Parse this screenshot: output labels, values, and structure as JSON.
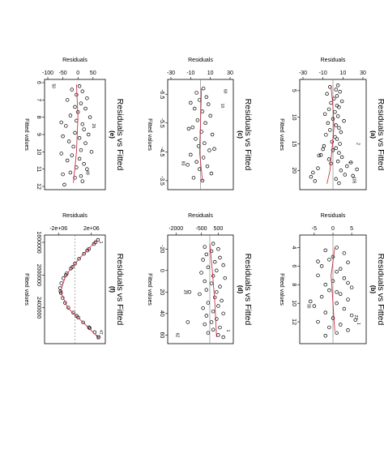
{
  "chart_data": [
    {
      "type": "scatter",
      "letter": "(a)",
      "title": "Residuals vs Fitted",
      "xlabel": "Fitted values",
      "ylabel": "Residuals",
      "xlim": [
        3.5,
        23
      ],
      "ylim": [
        -30,
        30
      ],
      "fitted_ticks": [
        5,
        10,
        15,
        20
      ],
      "residual_ticks": [
        -30,
        -10,
        10,
        30
      ],
      "zero_line": true,
      "points": [
        [
          4,
          5
        ],
        [
          4.3,
          -3
        ],
        [
          4.8,
          3
        ],
        [
          5.2,
          7
        ],
        [
          5.6,
          -6
        ],
        [
          6,
          4
        ],
        [
          6.5,
          1
        ],
        [
          7,
          9
        ],
        [
          7.3,
          -2
        ],
        [
          7.8,
          4
        ],
        [
          8.1,
          6
        ],
        [
          8.5,
          -4
        ],
        [
          9,
          2
        ],
        [
          9.4,
          -8
        ],
        [
          9.8,
          5
        ],
        [
          10.3,
          0
        ],
        [
          10.7,
          11
        ],
        [
          11.1,
          -5
        ],
        [
          11.5,
          3
        ],
        [
          12,
          6
        ],
        [
          12.4,
          -3
        ],
        [
          12.8,
          8
        ],
        [
          13.3,
          -7
        ],
        [
          13.7,
          2
        ],
        [
          14.1,
          4
        ],
        [
          14.6,
          -1
        ],
        [
          15,
          7
        ],
        [
          15.4,
          -9
        ],
        [
          15.8,
          3
        ],
        [
          16.2,
          0
        ],
        [
          16.7,
          6
        ],
        [
          17.1,
          -12
        ],
        [
          17.5,
          9
        ],
        [
          17.9,
          -4
        ],
        [
          18.3,
          5
        ],
        [
          18.7,
          -2
        ],
        [
          19.2,
          14
        ],
        [
          19.6,
          -15
        ],
        [
          20,
          8
        ],
        [
          20.4,
          -20
        ],
        [
          20.8,
          12
        ],
        [
          21.2,
          -22
        ],
        [
          21.6,
          3
        ],
        [
          22,
          -18
        ],
        [
          22.4,
          6
        ],
        [
          21,
          20
        ],
        [
          19.8,
          24
        ],
        [
          18.5,
          18
        ],
        [
          17.2,
          -14
        ],
        [
          16,
          -10
        ]
      ],
      "smoother": [
        [
          4,
          -2
        ],
        [
          8,
          0
        ],
        [
          12,
          1
        ],
        [
          16,
          -1
        ],
        [
          20,
          -3
        ],
        [
          22.5,
          -6
        ]
      ],
      "labels": [
        {
          "text": "1",
          "x": 18.5,
          "y": 16
        },
        {
          "text": "105",
          "x": 21.8,
          "y": 20
        },
        {
          "text": "2",
          "x": 15,
          "y": 24
        }
      ]
    },
    {
      "type": "scatter",
      "letter": "(b)",
      "title": "Residuals vs Fitted",
      "xlabel": "Fitted values",
      "ylabel": "Residuals",
      "xlim": [
        3,
        14
      ],
      "ylim": [
        -8,
        8
      ],
      "fitted_ticks": [
        4,
        6,
        8,
        10,
        12
      ],
      "residual_ticks": [
        -5,
        0,
        5
      ],
      "zero_line": true,
      "points": [
        [
          4,
          1
        ],
        [
          4.3,
          -2
        ],
        [
          4.6,
          3
        ],
        [
          5,
          0
        ],
        [
          5.3,
          -1
        ],
        [
          5.6,
          4
        ],
        [
          6,
          -3
        ],
        [
          6.3,
          2
        ],
        [
          6.6,
          1
        ],
        [
          7,
          -4
        ],
        [
          7.3,
          3
        ],
        [
          7.6,
          0
        ],
        [
          8,
          -2
        ],
        [
          8.3,
          5
        ],
        [
          8.6,
          -1
        ],
        [
          9,
          2
        ],
        [
          9.3,
          -3
        ],
        [
          9.6,
          4
        ],
        [
          10,
          1
        ],
        [
          10.3,
          -5
        ],
        [
          10.6,
          3
        ],
        [
          11,
          -2
        ],
        [
          11.3,
          5
        ],
        [
          11.6,
          0
        ],
        [
          12,
          -4
        ],
        [
          12.3,
          2
        ],
        [
          12.6,
          -1
        ],
        [
          12.9,
          4
        ],
        [
          13.2,
          1
        ],
        [
          13.5,
          -2
        ],
        [
          5.5,
          -4
        ],
        [
          7.8,
          4
        ],
        [
          9.8,
          -6
        ],
        [
          11.8,
          6
        ],
        [
          8.8,
          1
        ]
      ],
      "smoother": [
        [
          4,
          0.5
        ],
        [
          7,
          -0.5
        ],
        [
          10,
          0
        ],
        [
          13,
          0.5
        ]
      ],
      "labels": [
        {
          "text": "1",
          "x": 12.2,
          "y": 6.5
        },
        {
          "text": "30",
          "x": 10.3,
          "y": -6.8
        },
        {
          "text": "27",
          "x": 11.5,
          "y": 5.8
        }
      ]
    },
    {
      "type": "scatter",
      "letter": "(c)",
      "title": "Residuals vs Fitted",
      "xlabel": "Fitted values",
      "ylabel": "Residuals",
      "xlim": [
        -6.9,
        -3.3
      ],
      "ylim": [
        -30,
        30
      ],
      "fitted_ticks": [
        -6.5,
        -5.5,
        -4.5,
        -3.5
      ],
      "residual_ticks": [
        -30,
        -10,
        10,
        30
      ],
      "zero_line": true,
      "points": [
        [
          -6.7,
          3
        ],
        [
          -6.55,
          -4
        ],
        [
          -6.4,
          6
        ],
        [
          -6.3,
          -1
        ],
        [
          -6.15,
          8
        ],
        [
          -6,
          -6
        ],
        [
          -5.9,
          2
        ],
        [
          -5.75,
          10
        ],
        [
          -5.6,
          -3
        ],
        [
          -5.5,
          5
        ],
        [
          -5.35,
          -8
        ],
        [
          -5.2,
          1
        ],
        [
          -5.1,
          12
        ],
        [
          -4.95,
          -5
        ],
        [
          -4.8,
          4
        ],
        [
          -4.7,
          -2
        ],
        [
          -4.55,
          9
        ],
        [
          -4.4,
          -10
        ],
        [
          -4.3,
          3
        ],
        [
          -4.15,
          -4
        ],
        [
          -4,
          7
        ],
        [
          -3.9,
          -1
        ],
        [
          -3.75,
          11
        ],
        [
          -3.6,
          -7
        ],
        [
          -3.5,
          2
        ],
        [
          -6.2,
          -10
        ],
        [
          -5.3,
          -12
        ],
        [
          -4.6,
          14
        ],
        [
          -4.05,
          -13
        ]
      ],
      "smoother": [
        [
          -6.7,
          1
        ],
        [
          -5.5,
          0
        ],
        [
          -4.5,
          -1
        ],
        [
          -3.5,
          2
        ]
      ],
      "labels": [
        {
          "text": "10",
          "x": -6.1,
          "y": 21
        },
        {
          "text": "83",
          "x": -4.1,
          "y": -19
        },
        {
          "text": "60",
          "x": -6.6,
          "y": 24
        }
      ]
    },
    {
      "type": "scatter",
      "letter": "(d)",
      "title": "Residuals vs Fitted",
      "xlabel": "Fitted values",
      "ylabel": "Residuals",
      "xlim": [
        -30,
        65
      ],
      "ylim": [
        -2300,
        1200
      ],
      "fitted_ticks": [
        -20,
        0,
        20,
        40,
        60
      ],
      "residual_ticks": [
        -2000,
        -500,
        500
      ],
      "zero_line": true,
      "points": [
        [
          -25,
          200
        ],
        [
          -22,
          -300
        ],
        [
          -20,
          500
        ],
        [
          -18,
          100
        ],
        [
          -15,
          -200
        ],
        [
          -12,
          600
        ],
        [
          -10,
          -400
        ],
        [
          -8,
          300
        ],
        [
          -5,
          800
        ],
        [
          -3,
          -100
        ],
        [
          0,
          400
        ],
        [
          2,
          -500
        ],
        [
          5,
          200
        ],
        [
          7,
          900
        ],
        [
          10,
          -300
        ],
        [
          12,
          100
        ],
        [
          15,
          600
        ],
        [
          18,
          -200
        ],
        [
          20,
          400
        ],
        [
          22,
          -600
        ],
        [
          25,
          300
        ],
        [
          28,
          700
        ],
        [
          30,
          -100
        ],
        [
          33,
          500
        ],
        [
          35,
          -400
        ],
        [
          38,
          200
        ],
        [
          40,
          800
        ],
        [
          42,
          -200
        ],
        [
          45,
          400
        ],
        [
          48,
          100
        ],
        [
          50,
          -300
        ],
        [
          53,
          600
        ],
        [
          55,
          200
        ],
        [
          58,
          -100
        ],
        [
          60,
          500
        ],
        [
          62,
          800
        ],
        [
          20,
          -1200
        ],
        [
          48,
          -1300
        ]
      ],
      "smoother": [
        [
          -25,
          0
        ],
        [
          0,
          150
        ],
        [
          30,
          300
        ],
        [
          62,
          400
        ]
      ],
      "labels": [
        {
          "text": "28",
          "x": 20,
          "y": -1500
        },
        {
          "text": "1",
          "x": 56,
          "y": 1000
        },
        {
          "text": "62",
          "x": 60,
          "y": -2000
        }
      ]
    },
    {
      "type": "scatter",
      "letter": "(e)",
      "title": "Residuals vs Fitted",
      "xlabel": "Fitted values",
      "ylabel": "Residuals",
      "xlim": [
        6,
        12
      ],
      "ylim": [
        -100,
        80
      ],
      "fitted_ticks": [
        6,
        7,
        8,
        9,
        10,
        11,
        12
      ],
      "residual_ticks": [
        -100,
        -50,
        0,
        50
      ],
      "zero_line": false,
      "points": [
        [
          6.2,
          5
        ],
        [
          6.4,
          -20
        ],
        [
          6.5,
          15
        ],
        [
          6.7,
          -5
        ],
        [
          6.9,
          30
        ],
        [
          7,
          -35
        ],
        [
          7.2,
          10
        ],
        [
          7.4,
          -10
        ],
        [
          7.5,
          25
        ],
        [
          7.7,
          0
        ],
        [
          7.9,
          -25
        ],
        [
          8,
          40
        ],
        [
          8.2,
          -5
        ],
        [
          8.4,
          15
        ],
        [
          8.5,
          -40
        ],
        [
          8.7,
          20
        ],
        [
          8.9,
          -10
        ],
        [
          9,
          35
        ],
        [
          9.2,
          5
        ],
        [
          9.4,
          -30
        ],
        [
          9.5,
          25
        ],
        [
          9.7,
          -15
        ],
        [
          9.9,
          10
        ],
        [
          10,
          45
        ],
        [
          10.2,
          -20
        ],
        [
          10.4,
          5
        ],
        [
          10.5,
          -35
        ],
        [
          10.7,
          20
        ],
        [
          10.9,
          -5
        ],
        [
          11,
          30
        ],
        [
          11.2,
          -25
        ],
        [
          11.4,
          10
        ],
        [
          11.5,
          -10
        ],
        [
          11.7,
          15
        ],
        [
          11.9,
          -45
        ],
        [
          8.3,
          -55
        ],
        [
          9.1,
          -50
        ],
        [
          10.1,
          -55
        ],
        [
          11.3,
          -50
        ]
      ],
      "smoother": [
        [
          6.1,
          -5
        ],
        [
          8,
          0
        ],
        [
          10,
          -5
        ],
        [
          11.8,
          -15
        ]
      ],
      "labels": [
        {
          "text": "50",
          "x": 6.2,
          "y": -85
        },
        {
          "text": "26",
          "x": 8.5,
          "y": 48
        },
        {
          "text": "49",
          "x": 11.2,
          "y": 28
        }
      ]
    },
    {
      "type": "scatter",
      "letter": "(f)",
      "title": "Residuals vs Fitted",
      "xlabel": "Fitted values",
      "ylabel": "Residuals",
      "xlim": [
        1550000,
        2800000
      ],
      "ylim": [
        -3300000,
        3300000
      ],
      "fitted_ticks": [
        1600000,
        2000000,
        2400000
      ],
      "fitted_tick_labels": [
        "1600000",
        "2000000",
        "2400000"
      ],
      "residual_ticks": [
        -2000000,
        2000000
      ],
      "residual_tick_labels": [
        "-2e+06",
        "2e+06"
      ],
      "zero_line": true,
      "zero_dashed": true,
      "points": [
        [
          1570000,
          2800000
        ],
        [
          1620000,
          2300000
        ],
        [
          1680000,
          1700000
        ],
        [
          1740000,
          1100000
        ],
        [
          1800000,
          500000
        ],
        [
          1860000,
          0
        ],
        [
          1920000,
          -500000
        ],
        [
          1980000,
          -1000000
        ],
        [
          2040000,
          -1400000
        ],
        [
          2100000,
          -1650000
        ],
        [
          2160000,
          -1800000
        ],
        [
          2220000,
          -1700000
        ],
        [
          2280000,
          -1500000
        ],
        [
          2340000,
          -1200000
        ],
        [
          2400000,
          -800000
        ],
        [
          2460000,
          -200000
        ],
        [
          2520000,
          400000
        ],
        [
          2580000,
          1000000
        ],
        [
          2640000,
          1700000
        ],
        [
          2700000,
          2400000
        ],
        [
          2760000,
          2900000
        ],
        [
          1600000,
          2500000
        ],
        [
          1700000,
          1500000
        ],
        [
          1900000,
          -300000
        ],
        [
          2000000,
          -1100000
        ],
        [
          2200000,
          -1750000
        ],
        [
          2500000,
          200000
        ],
        [
          2650000,
          1800000
        ]
      ],
      "smoother": [
        [
          1570000,
          2700000
        ],
        [
          1800000,
          500000
        ],
        [
          2000000,
          -1100000
        ],
        [
          2200000,
          -1750000
        ],
        [
          2400000,
          -900000
        ],
        [
          2600000,
          1200000
        ],
        [
          2760000,
          2800000
        ]
      ],
      "labels": [
        {
          "text": "1",
          "x": 1600000,
          "y": 3000000
        },
        {
          "text": "47",
          "x": 2700000,
          "y": 3000000
        },
        {
          "text": "20",
          "x": 2760000,
          "y": 2600000
        }
      ]
    }
  ]
}
